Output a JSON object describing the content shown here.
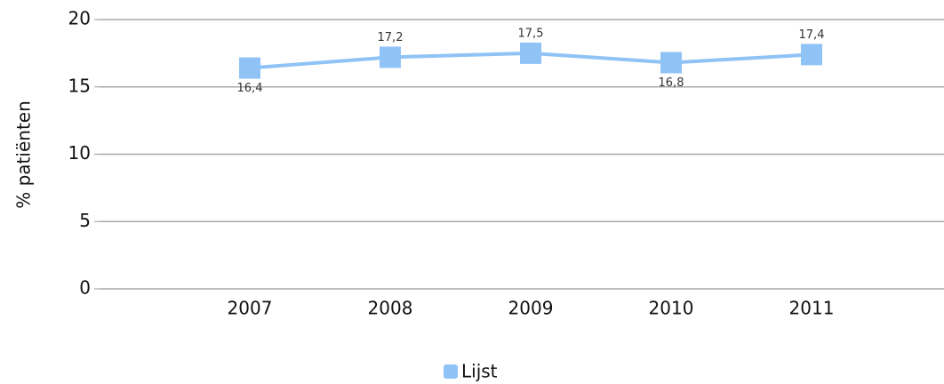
{
  "chart_data": {
    "type": "line",
    "y_label": "% patiënten",
    "categories": [
      "2007",
      "2008",
      "2009",
      "2010",
      "2011"
    ],
    "series": [
      {
        "name": "Lijst",
        "color": "#8fc3f5",
        "values": [
          16.4,
          17.2,
          17.5,
          16.8,
          17.4
        ],
        "value_labels": [
          "16,4",
          "17,2",
          "17,5",
          "16,8",
          "17,4"
        ]
      }
    ],
    "ylim": [
      0,
      20
    ],
    "yticks": [
      0,
      5,
      10,
      15,
      20
    ],
    "grid": true,
    "legend": "bottom"
  }
}
